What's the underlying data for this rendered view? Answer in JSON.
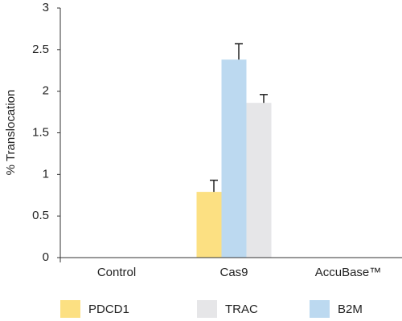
{
  "chart_data": {
    "type": "bar",
    "y_label": "% Translocation",
    "categories": [
      "Control",
      "Cas9",
      "AccuBase™"
    ],
    "series": [
      {
        "name": "PDCD1",
        "color": "#fce082",
        "values": [
          0,
          0.79,
          0
        ],
        "errors": [
          null,
          0.14,
          null
        ]
      },
      {
        "name": "B2M",
        "color": "#bcd9f0",
        "values": [
          0,
          2.38,
          0
        ],
        "errors": [
          null,
          0.19,
          null
        ]
      },
      {
        "name": "TRAC",
        "color": "#e6e6e8",
        "values": [
          0,
          1.86,
          0
        ],
        "errors": [
          null,
          0.1,
          null
        ]
      }
    ],
    "legend_order": [
      "PDCD1",
      "TRAC",
      "B2M"
    ],
    "ylim": [
      0,
      3
    ],
    "yticks": [
      0,
      0.5,
      1,
      1.5,
      2,
      2.5,
      3
    ],
    "grid": false
  }
}
